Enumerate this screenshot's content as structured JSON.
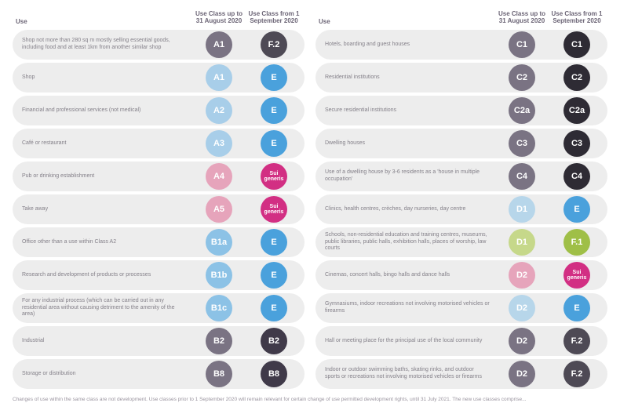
{
  "colors": {
    "row_bg": "#ededed",
    "grey_dark": "#7a7383",
    "grey_darker": "#4e4a55",
    "blue_light": "#a8cee9",
    "blue_mid": "#4aa1dc",
    "blue_dark": "#2a73c2",
    "blue_pale": "#8cc2e6",
    "blue_washed": "#b7d6ea",
    "pink_light": "#e6a4bb",
    "pink_dark": "#d22f83",
    "green_light": "#c6d88a",
    "green_dark": "#9fbf47",
    "near_black": "#2e2b34",
    "near_black2": "#403a49"
  },
  "header": {
    "use": "Use",
    "old": "Use Class up to 31 August 2020",
    "new": "Use Class from 1 September 2020"
  },
  "left_rows": [
    {
      "desc": "Shop not more than 280 sq m mostly selling essential goods, including food and at least 1km from another similar shop",
      "old": {
        "text": "A1",
        "color": "grey_dark"
      },
      "new": {
        "text": "F.2",
        "color": "grey_darker"
      }
    },
    {
      "desc": "Shop",
      "old": {
        "text": "A1",
        "color": "blue_light"
      },
      "new": {
        "text": "E",
        "color": "blue_mid"
      }
    },
    {
      "desc": "Financial and professional services (not medical)",
      "old": {
        "text": "A2",
        "color": "blue_light"
      },
      "new": {
        "text": "E",
        "color": "blue_mid"
      }
    },
    {
      "desc": "Café or restaurant",
      "old": {
        "text": "A3",
        "color": "blue_light"
      },
      "new": {
        "text": "E",
        "color": "blue_mid"
      }
    },
    {
      "desc": "Pub or drinking establishment",
      "old": {
        "text": "A4",
        "color": "pink_light"
      },
      "new": {
        "text": "Sui generis",
        "color": "pink_dark",
        "small": true
      }
    },
    {
      "desc": "Take away",
      "old": {
        "text": "A5",
        "color": "pink_light"
      },
      "new": {
        "text": "Sui generis",
        "color": "pink_dark",
        "small": true
      }
    },
    {
      "desc": "Office other than a use within Class A2",
      "old": {
        "text": "B1a",
        "color": "blue_pale"
      },
      "new": {
        "text": "E",
        "color": "blue_mid"
      }
    },
    {
      "desc": "Research and development of products or processes",
      "old": {
        "text": "B1b",
        "color": "blue_pale"
      },
      "new": {
        "text": "E",
        "color": "blue_mid"
      }
    },
    {
      "desc": "For any industrial process (which can be carried out in any residential area without causing detriment to the amenity of the area)",
      "old": {
        "text": "B1c",
        "color": "blue_pale"
      },
      "new": {
        "text": "E",
        "color": "blue_mid"
      }
    },
    {
      "desc": "Industrial",
      "old": {
        "text": "B2",
        "color": "grey_dark"
      },
      "new": {
        "text": "B2",
        "color": "near_black2"
      }
    },
    {
      "desc": "Storage or distribution",
      "old": {
        "text": "B8",
        "color": "grey_dark"
      },
      "new": {
        "text": "B8",
        "color": "near_black2"
      }
    }
  ],
  "right_rows": [
    {
      "desc": "Hotels, boarding and guest houses",
      "old": {
        "text": "C1",
        "color": "grey_dark"
      },
      "new": {
        "text": "C1",
        "color": "near_black"
      }
    },
    {
      "desc": "Residential institutions",
      "old": {
        "text": "C2",
        "color": "grey_dark"
      },
      "new": {
        "text": "C2",
        "color": "near_black"
      }
    },
    {
      "desc": "Secure residential institutions",
      "old": {
        "text": "C2a",
        "color": "grey_dark"
      },
      "new": {
        "text": "C2a",
        "color": "near_black"
      }
    },
    {
      "desc": "Dwelling houses",
      "old": {
        "text": "C3",
        "color": "grey_dark"
      },
      "new": {
        "text": "C3",
        "color": "near_black"
      }
    },
    {
      "desc": "Use of a dwelling house by 3-6 residents as a 'house in multiple occupation'",
      "old": {
        "text": "C4",
        "color": "grey_dark"
      },
      "new": {
        "text": "C4",
        "color": "near_black"
      }
    },
    {
      "desc": "Clinics, health centres, crèches, day nurseries, day centre",
      "old": {
        "text": "D1",
        "color": "blue_washed"
      },
      "new": {
        "text": "E",
        "color": "blue_mid"
      }
    },
    {
      "desc": "Schools, non-residential education and training centres, museums, public libraries, public halls, exhibition halls, places of worship, law courts",
      "old": {
        "text": "D1",
        "color": "green_light"
      },
      "new": {
        "text": "F.1",
        "color": "green_dark"
      }
    },
    {
      "desc": "Cinemas, concert halls, bingo halls and dance halls",
      "old": {
        "text": "D2",
        "color": "pink_light"
      },
      "new": {
        "text": "Sui generis",
        "color": "pink_dark",
        "small": true
      }
    },
    {
      "desc": "Gymnasiums, indoor recreations not involving motorised vehicles or firearms",
      "old": {
        "text": "D2",
        "color": "blue_washed"
      },
      "new": {
        "text": "E",
        "color": "blue_mid"
      }
    },
    {
      "desc": "Hall or meeting place for the principal use of the local community",
      "old": {
        "text": "D2",
        "color": "grey_dark"
      },
      "new": {
        "text": "F.2",
        "color": "grey_darker"
      }
    },
    {
      "desc": "Indoor or outdoor swimming baths, skating rinks, and outdoor sports or recreations not involving motorised vehicles or firearms",
      "old": {
        "text": "D2",
        "color": "grey_dark"
      },
      "new": {
        "text": "F.2",
        "color": "grey_darker"
      }
    }
  ],
  "footnote": "Changes of use within the same class are not development. Use classes prior to 1 September 2020 will remain relevant for certain change of use permitted development rights, until 31 July 2021. The new use classes comprise..."
}
